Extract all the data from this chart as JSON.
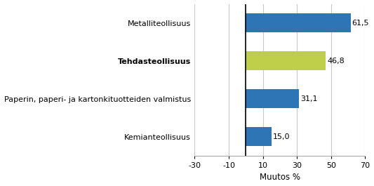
{
  "categories": [
    "Kemianteollisuus",
    "Paperin, paperi- ja kartonkituotteiden valmistus",
    "Tehdasteollisuus",
    "Metalliteollisuus"
  ],
  "values": [
    15.0,
    31.1,
    46.8,
    61.5
  ],
  "bar_colors": [
    "#2E75B6",
    "#2E75B6",
    "#BFCE48",
    "#2E75B6"
  ],
  "bold_labels": [
    false,
    false,
    true,
    false
  ],
  "value_labels": [
    "15,0",
    "31,1",
    "46,8",
    "61,5"
  ],
  "xlabel": "Muutos %",
  "xlim": [
    -30,
    70
  ],
  "xticks": [
    -30,
    -10,
    10,
    30,
    50,
    70
  ],
  "vline_x": 0,
  "bar_height": 0.5,
  "background_color": "#ffffff",
  "grid_color": "#c8c8c8",
  "label_fontsize": 8.0,
  "value_fontsize": 8.0,
  "xlabel_fontsize": 8.5
}
